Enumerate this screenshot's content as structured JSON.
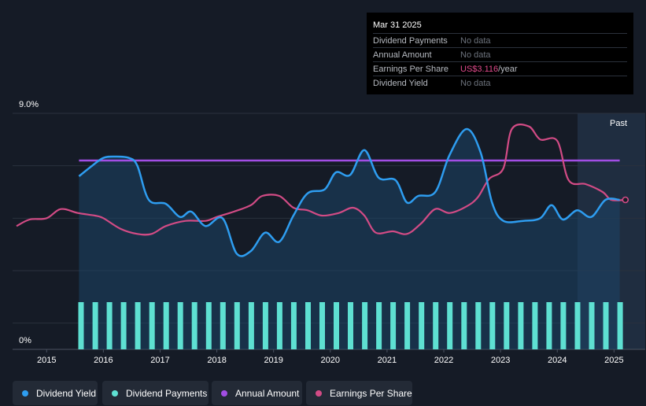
{
  "tooltip": {
    "date": "Mar 31 2025",
    "rows": [
      {
        "label": "Dividend Payments",
        "value": "No data"
      },
      {
        "label": "Annual Amount",
        "value": "No data"
      },
      {
        "label": "Earnings Per Share",
        "value": "US$3.116",
        "suffix": "/year"
      },
      {
        "label": "Dividend Yield",
        "value": "No data"
      }
    ]
  },
  "legend": [
    {
      "label": "Dividend Yield",
      "color": "#2e9df0"
    },
    {
      "label": "Dividend Payments",
      "color": "#5ee0d2"
    },
    {
      "label": "Annual Amount",
      "color": "#a24ee4"
    },
    {
      "label": "Earnings Per Share",
      "color": "#d24b85"
    }
  ],
  "chart_data": {
    "type": "line",
    "y_top_label": "9.0%",
    "y_bottom_label": "0%",
    "ylim": [
      0,
      9.0
    ],
    "xlim": [
      2014.4,
      2025.55
    ],
    "past_label": "Past",
    "forecast_start": 2024.25,
    "x_ticks": [
      "2015",
      "2016",
      "2017",
      "2018",
      "2019",
      "2020",
      "2021",
      "2022",
      "2023",
      "2024",
      "2025"
    ],
    "series": [
      {
        "name": "Dividend Yield",
        "color": "#2e9df0",
        "fill": "#1c4466",
        "points": [
          [
            2015.57,
            6.6
          ],
          [
            2015.8,
            7.0
          ],
          [
            2016.0,
            7.3
          ],
          [
            2016.2,
            7.35
          ],
          [
            2016.45,
            7.3
          ],
          [
            2016.6,
            7.0
          ],
          [
            2016.8,
            5.7
          ],
          [
            2017.1,
            5.55
          ],
          [
            2017.35,
            5.05
          ],
          [
            2017.55,
            5.25
          ],
          [
            2017.8,
            4.7
          ],
          [
            2018.1,
            5.0
          ],
          [
            2018.35,
            3.65
          ],
          [
            2018.6,
            3.75
          ],
          [
            2018.85,
            4.45
          ],
          [
            2019.1,
            4.1
          ],
          [
            2019.35,
            5.1
          ],
          [
            2019.6,
            5.95
          ],
          [
            2019.9,
            6.1
          ],
          [
            2020.1,
            6.75
          ],
          [
            2020.35,
            6.65
          ],
          [
            2020.6,
            7.6
          ],
          [
            2020.85,
            6.55
          ],
          [
            2021.15,
            6.45
          ],
          [
            2021.35,
            5.6
          ],
          [
            2021.55,
            5.85
          ],
          [
            2021.85,
            6.0
          ],
          [
            2022.1,
            7.4
          ],
          [
            2022.4,
            8.4
          ],
          [
            2022.65,
            7.5
          ],
          [
            2022.85,
            5.6
          ],
          [
            2023.05,
            4.9
          ],
          [
            2023.4,
            4.9
          ],
          [
            2023.7,
            5.0
          ],
          [
            2023.9,
            5.5
          ],
          [
            2024.1,
            4.95
          ],
          [
            2024.35,
            5.3
          ],
          [
            2024.6,
            5.05
          ],
          [
            2024.85,
            5.7
          ],
          [
            2025.1,
            5.7
          ]
        ]
      },
      {
        "name": "Earnings Per Share",
        "color": "#d24b85",
        "points": [
          [
            2014.47,
            4.7
          ],
          [
            2014.7,
            4.95
          ],
          [
            2015.0,
            5.0
          ],
          [
            2015.25,
            5.35
          ],
          [
            2015.55,
            5.2
          ],
          [
            2015.85,
            5.1
          ],
          [
            2016.0,
            5.0
          ],
          [
            2016.3,
            4.6
          ],
          [
            2016.6,
            4.4
          ],
          [
            2016.85,
            4.4
          ],
          [
            2017.1,
            4.7
          ],
          [
            2017.45,
            4.9
          ],
          [
            2017.8,
            4.9
          ],
          [
            2018.0,
            5.05
          ],
          [
            2018.3,
            5.25
          ],
          [
            2018.6,
            5.5
          ],
          [
            2018.8,
            5.85
          ],
          [
            2019.1,
            5.85
          ],
          [
            2019.35,
            5.4
          ],
          [
            2019.6,
            5.3
          ],
          [
            2019.85,
            5.1
          ],
          [
            2020.15,
            5.2
          ],
          [
            2020.4,
            5.4
          ],
          [
            2020.6,
            5.1
          ],
          [
            2020.8,
            4.45
          ],
          [
            2021.1,
            4.5
          ],
          [
            2021.35,
            4.4
          ],
          [
            2021.6,
            4.8
          ],
          [
            2021.85,
            5.35
          ],
          [
            2022.1,
            5.2
          ],
          [
            2022.4,
            5.45
          ],
          [
            2022.6,
            5.8
          ],
          [
            2022.8,
            6.5
          ],
          [
            2023.05,
            6.9
          ],
          [
            2023.2,
            8.4
          ],
          [
            2023.5,
            8.5
          ],
          [
            2023.7,
            8.0
          ],
          [
            2024.0,
            7.95
          ],
          [
            2024.2,
            6.45
          ],
          [
            2024.5,
            6.3
          ],
          [
            2024.8,
            6.0
          ],
          [
            2024.95,
            5.7
          ],
          [
            2025.2,
            5.7
          ]
        ]
      },
      {
        "name": "Annual Amount",
        "color": "#a24ee4",
        "points": [
          [
            2015.57,
            7.2
          ],
          [
            2025.1,
            7.2
          ]
        ]
      },
      {
        "name": "Dividend Payments",
        "color": "#5ee0d2",
        "type": "bars",
        "bar_value": 1.8,
        "bar_times": [
          2015.6,
          2015.85,
          2016.1,
          2016.35,
          2016.6,
          2016.85,
          2017.1,
          2017.35,
          2017.6,
          2017.85,
          2018.1,
          2018.35,
          2018.6,
          2018.85,
          2019.1,
          2019.35,
          2019.6,
          2019.85,
          2020.1,
          2020.35,
          2020.6,
          2020.85,
          2021.1,
          2021.35,
          2021.6,
          2021.85,
          2022.1,
          2022.35,
          2022.6,
          2022.85,
          2023.1,
          2023.35,
          2023.6,
          2023.85,
          2024.1,
          2024.35,
          2024.6,
          2024.85,
          2025.1
        ]
      }
    ]
  }
}
